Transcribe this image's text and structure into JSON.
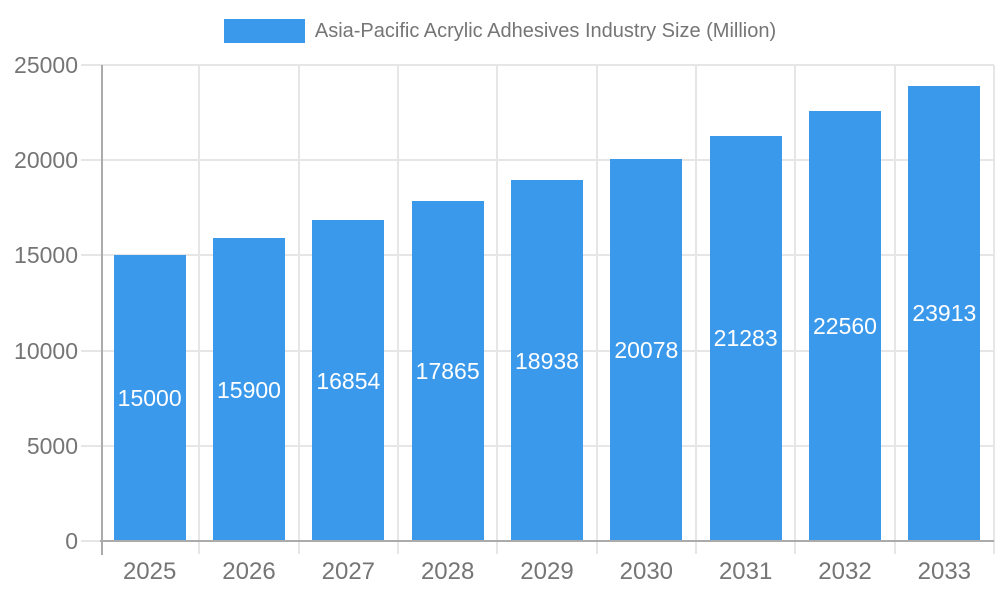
{
  "chart_data": {
    "type": "bar",
    "title": "Asia-Pacific Acrylic Adhesives Industry Size (Million)",
    "legend": {
      "position": "top",
      "series_label": "Asia-Pacific Acrylic Adhesives Industry Size (Million)"
    },
    "categories": [
      "2025",
      "2026",
      "2027",
      "2028",
      "2029",
      "2030",
      "2031",
      "2032",
      "2033"
    ],
    "series": [
      {
        "name": "Asia-Pacific Acrylic Adhesives Industry Size (Million)",
        "values": [
          15000,
          15900,
          16854,
          17865,
          18938,
          20078,
          21283,
          22560,
          23913
        ]
      }
    ],
    "value_labels": [
      "15000",
      "15900",
      "16854",
      "17865",
      "18938",
      "20078",
      "21283",
      "22560",
      "23913"
    ],
    "xlabel": "",
    "ylabel": "",
    "ylim": [
      0,
      25000
    ],
    "y_ticks": [
      0,
      5000,
      10000,
      15000,
      20000,
      25000
    ],
    "y_tick_labels": [
      "0",
      "5000",
      "10000",
      "15000",
      "20000",
      "25000"
    ],
    "grid": true,
    "colors": {
      "bar": "#3b99ec",
      "value_label": "#ffffff",
      "axis_text": "#757575",
      "gridline": "#e6e6e6",
      "axis_line": "#ababab",
      "background": "#ffffff"
    }
  }
}
